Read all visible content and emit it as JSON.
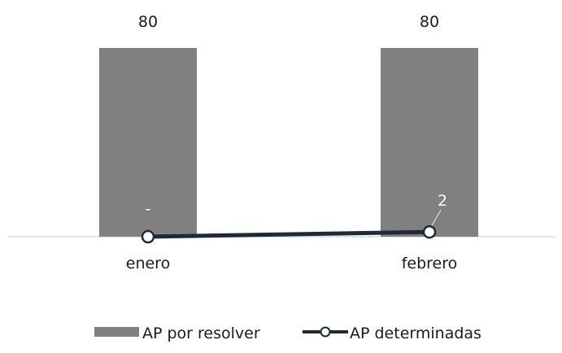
{
  "chart_data": {
    "type": "bar",
    "categories": [
      "enero",
      "febrero"
    ],
    "series": [
      {
        "name": "AP por resolver",
        "type": "bar",
        "values": [
          80,
          80
        ],
        "labels": [
          "80",
          "80"
        ],
        "color": "#808080"
      },
      {
        "name": "AP determinadas",
        "type": "line",
        "values": [
          0,
          2
        ],
        "labels": [
          "-",
          "2"
        ],
        "color": "#1f2a38",
        "marker_fill": "#ffffff"
      }
    ],
    "ylim": [
      0,
      80
    ],
    "grid": false,
    "legend_position": "bottom"
  }
}
